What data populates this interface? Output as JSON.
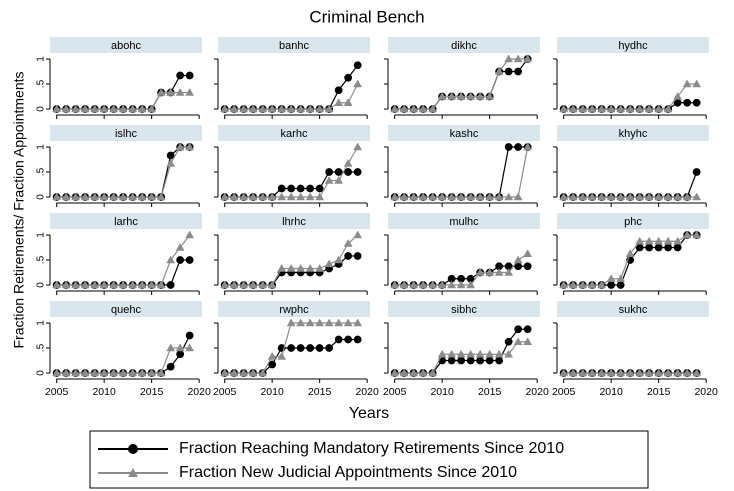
{
  "chart_data": {
    "type": "line",
    "title": "Criminal Bench",
    "x_label": "Years",
    "y_label": "Fraction Retirements/ Fraction Appointments",
    "x": [
      2005,
      2006,
      2007,
      2008,
      2009,
      2010,
      2011,
      2012,
      2013,
      2014,
      2015,
      2016,
      2017,
      2018,
      2019
    ],
    "xlim": [
      2004.3,
      2020.3
    ],
    "xticks": [
      2005,
      2010,
      2015,
      2020
    ],
    "ylim": [
      -0.12,
      1.12
    ],
    "yticks": [
      0,
      {
        "value": 0.5,
        "label": ".5"
      },
      1
    ],
    "legend": [
      {
        "name": "Fraction Reaching Mandatory Retirements Since 2010",
        "color": "#000000",
        "marker": "circle"
      },
      {
        "name": "Fraction New Judicial Appointments Since 2010",
        "color": "#8c8c8c",
        "marker": "triangle"
      }
    ],
    "panels": [
      {
        "title": "abohc",
        "series": [
          {
            "values": [
              0,
              0,
              0,
              0,
              0,
              0,
              0,
              0,
              0,
              0,
              0,
              0.33,
              0.33,
              0.67,
              0.67
            ]
          },
          {
            "values": [
              0,
              0,
              0,
              0,
              0,
              0,
              0,
              0,
              0,
              0,
              0,
              0.33,
              0.33,
              0.33,
              0.33
            ]
          }
        ]
      },
      {
        "title": "banhc",
        "series": [
          {
            "values": [
              0,
              0,
              0,
              0,
              0,
              0,
              0,
              0,
              0,
              0,
              0,
              0,
              0.375,
              0.625,
              0.875
            ]
          },
          {
            "values": [
              0,
              0,
              0,
              0,
              0,
              0,
              0,
              0,
              0,
              0,
              0,
              0,
              0.125,
              0.125,
              0.5
            ]
          }
        ]
      },
      {
        "title": "dikhc",
        "series": [
          {
            "values": [
              0,
              0,
              0,
              0,
              0,
              0.25,
              0.25,
              0.25,
              0.25,
              0.25,
              0.25,
              0.75,
              0.75,
              0.75,
              1
            ]
          },
          {
            "values": [
              0,
              0,
              0,
              0,
              0,
              0.25,
              0.25,
              0.25,
              0.25,
              0.25,
              0.25,
              0.75,
              1,
              1,
              1
            ]
          }
        ]
      },
      {
        "title": "hydhc",
        "series": [
          {
            "values": [
              0,
              0,
              0,
              0,
              0,
              0,
              0,
              0,
              0,
              0,
              0,
              0,
              0.125,
              0.125,
              0.125
            ]
          },
          {
            "values": [
              0,
              0,
              0,
              0,
              0,
              0,
              0,
              0,
              0,
              0,
              0,
              0,
              0.25,
              0.5,
              0.5
            ]
          }
        ]
      },
      {
        "title": "islhc",
        "series": [
          {
            "values": [
              0,
              0,
              0,
              0,
              0,
              0,
              0,
              0,
              0,
              0,
              0,
              0,
              0.83,
              1,
              1
            ]
          },
          {
            "values": [
              0,
              0,
              0,
              0,
              0,
              0,
              0,
              0,
              0,
              0,
              0,
              0,
              0.67,
              1,
              1
            ]
          }
        ]
      },
      {
        "title": "karhc",
        "series": [
          {
            "values": [
              0,
              0,
              0,
              0,
              0,
              0,
              0.17,
              0.17,
              0.17,
              0.17,
              0.17,
              0.5,
              0.5,
              0.5,
              0.5
            ]
          },
          {
            "values": [
              0,
              0,
              0,
              0,
              0,
              0,
              0,
              0,
              0,
              0,
              0,
              0.33,
              0.33,
              0.67,
              1
            ]
          }
        ]
      },
      {
        "title": "kashc",
        "series": [
          {
            "values": [
              0,
              0,
              0,
              0,
              0,
              0,
              0,
              0,
              0,
              0,
              0,
              0,
              1,
              1,
              1
            ]
          },
          {
            "values": [
              0,
              0,
              0,
              0,
              0,
              0,
              0,
              0,
              0,
              0,
              0,
              0,
              0,
              0,
              1
            ]
          }
        ]
      },
      {
        "title": "khyhc",
        "series": [
          {
            "values": [
              0,
              0,
              0,
              0,
              0,
              0,
              0,
              0,
              0,
              0,
              0,
              0,
              0,
              0,
              0.5
            ]
          },
          {
            "values": [
              0,
              0,
              0,
              0,
              0,
              0,
              0,
              0,
              0,
              0,
              0,
              0,
              0,
              0,
              0
            ]
          }
        ]
      },
      {
        "title": "larhc",
        "series": [
          {
            "values": [
              0,
              0,
              0,
              0,
              0,
              0,
              0,
              0,
              0,
              0,
              0,
              0,
              0,
              0.5,
              0.5
            ]
          },
          {
            "values": [
              0,
              0,
              0,
              0,
              0,
              0,
              0,
              0,
              0,
              0,
              0,
              0,
              0.5,
              0.75,
              1
            ]
          }
        ]
      },
      {
        "title": "lhrhc",
        "series": [
          {
            "values": [
              0,
              0,
              0,
              0,
              0,
              0,
              0.25,
              0.25,
              0.25,
              0.25,
              0.25,
              0.33,
              0.42,
              0.58,
              0.58
            ]
          },
          {
            "values": [
              0,
              0,
              0,
              0,
              0,
              0,
              0.33,
              0.33,
              0.33,
              0.33,
              0.33,
              0.42,
              0.5,
              0.83,
              1
            ]
          }
        ]
      },
      {
        "title": "mulhc",
        "series": [
          {
            "values": [
              0,
              0,
              0,
              0,
              0,
              0,
              0.125,
              0.125,
              0.125,
              0.25,
              0.25,
              0.375,
              0.375,
              0.375,
              0.375
            ]
          },
          {
            "values": [
              0,
              0,
              0,
              0,
              0,
              0,
              0,
              0,
              0,
              0.25,
              0.25,
              0.25,
              0.25,
              0.5,
              0.625
            ]
          }
        ]
      },
      {
        "title": "phc",
        "series": [
          {
            "values": [
              0,
              0,
              0,
              0,
              0,
              0,
              0,
              0.5,
              0.75,
              0.75,
              0.75,
              0.75,
              0.75,
              1,
              1
            ]
          },
          {
            "values": [
              0,
              0,
              0,
              0,
              0,
              0.125,
              0.125,
              0.625,
              0.875,
              0.875,
              0.875,
              0.875,
              0.875,
              1,
              1
            ]
          }
        ]
      },
      {
        "title": "quehc",
        "series": [
          {
            "values": [
              0,
              0,
              0,
              0,
              0,
              0,
              0,
              0,
              0,
              0,
              0,
              0,
              0.125,
              0.375,
              0.75
            ]
          },
          {
            "values": [
              0,
              0,
              0,
              0,
              0,
              0,
              0,
              0,
              0,
              0,
              0,
              0,
              0.5,
              0.5,
              0.5
            ]
          }
        ]
      },
      {
        "title": "rwphc",
        "series": [
          {
            "values": [
              0,
              0,
              0,
              0,
              0,
              0.17,
              0.5,
              0.5,
              0.5,
              0.5,
              0.5,
              0.5,
              0.67,
              0.67,
              0.67
            ]
          },
          {
            "values": [
              0,
              0,
              0,
              0,
              0,
              0.33,
              0.33,
              1,
              1,
              1,
              1,
              1,
              1,
              1,
              1
            ]
          }
        ]
      },
      {
        "title": "sibhc",
        "series": [
          {
            "values": [
              0,
              0,
              0,
              0,
              0,
              0.25,
              0.25,
              0.25,
              0.25,
              0.25,
              0.25,
              0.25,
              0.625,
              0.875,
              0.875
            ]
          },
          {
            "values": [
              0,
              0,
              0,
              0,
              0,
              0.375,
              0.375,
              0.375,
              0.375,
              0.375,
              0.375,
              0.375,
              0.375,
              0.625,
              0.625
            ]
          }
        ]
      },
      {
        "title": "sukhc",
        "series": [
          {
            "values": [
              0,
              0,
              0,
              0,
              0,
              0,
              0,
              0,
              0,
              0,
              0,
              0,
              0,
              0,
              0
            ]
          },
          {
            "values": [
              0,
              0,
              0,
              0,
              0,
              0,
              0,
              0,
              0,
              0,
              0,
              0,
              0,
              0,
              0
            ]
          }
        ]
      }
    ]
  }
}
